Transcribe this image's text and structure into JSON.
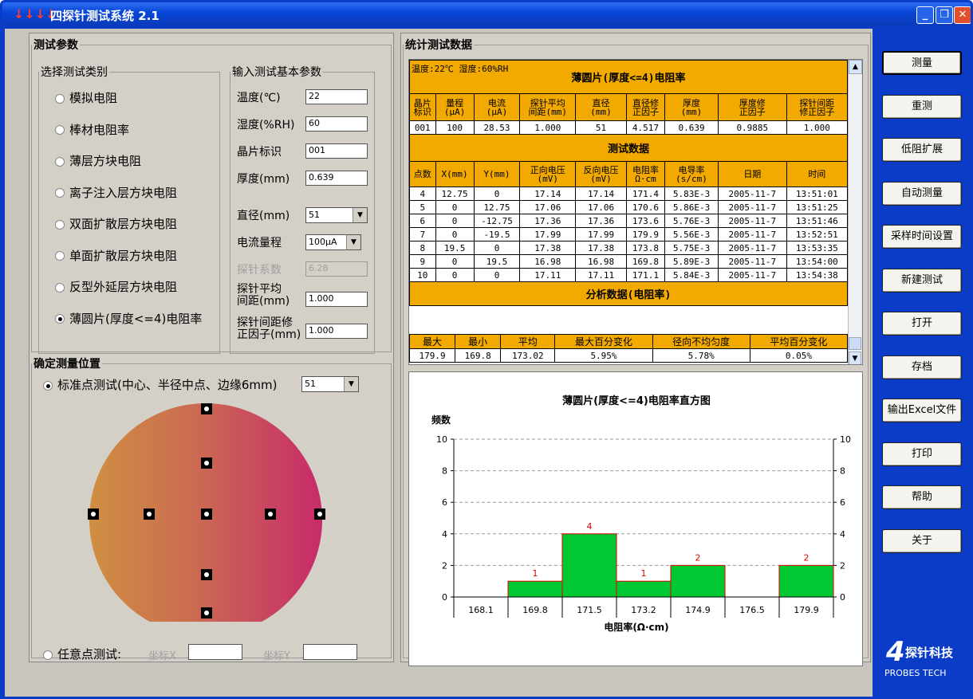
{
  "app": {
    "title": "四探针测试系统 2.1"
  },
  "window": {
    "min": "_",
    "restore": "❐",
    "close": "✕"
  },
  "params": {
    "title": "测试参数",
    "category_title": "选择测试类别",
    "categories": [
      "模拟电阻",
      "棒材电阻率",
      "薄层方块电阻",
      "离子注入层方块电阻",
      "双面扩散层方块电阻",
      "单面扩散层方块电阻",
      "反型外延层方块电阻",
      "薄圆片(厚度<=4)电阻率"
    ],
    "selected_category": 7,
    "input_title": "输入测试基本参数",
    "fields": [
      {
        "label": "温度(℃)",
        "value": "22"
      },
      {
        "label": "湿度(%RH)",
        "value": "60"
      },
      {
        "label": "晶片标识",
        "value": "001"
      },
      {
        "label": "厚度(mm)",
        "value": "0.639"
      }
    ],
    "diameter_label": "直径(mm)",
    "diameter_value": "51",
    "range_label": "电流量程",
    "range_value": "100μA",
    "probe_coef_label": "探针系数",
    "probe_coef_value": "6.28",
    "spacing_label_1": "探针平均",
    "spacing_label_2": "间距(mm)",
    "spacing_value": "1.000",
    "spacing_corr_label_1": "探针间距修",
    "spacing_corr_label_2": "正因子(mm)",
    "spacing_corr_value": "1.000"
  },
  "position": {
    "title": "确定测量位置",
    "standard_label": "标准点测试(中心、半径中点、边缘6mm)",
    "standard_value": "51",
    "arbitrary_label": "任意点测试:",
    "coord_x_label": "坐标X",
    "coord_y_label": "坐标Y"
  },
  "stats": {
    "title": "统计测试数据",
    "env": "温度:22℃ 湿度:60%RH",
    "table_title": "薄圆片(厚度<=4)电阻率",
    "info_headers": [
      [
        "晶片",
        "标识"
      ],
      [
        "量程",
        "(μA)"
      ],
      [
        "电流",
        "(μA)"
      ],
      [
        "探针平均",
        "间距(mm)"
      ],
      [
        "直径",
        "(mm)"
      ],
      [
        "直径修",
        "正因子"
      ],
      [
        "厚度",
        "(mm)"
      ],
      [
        "厚度修",
        "正因子"
      ],
      [
        "探针间距",
        "修正因子"
      ]
    ],
    "info_values": [
      "001",
      "100",
      "28.53",
      "1.000",
      "51",
      "4.517",
      "0.639",
      "0.9885",
      "1.000"
    ],
    "test_title": "测试数据",
    "test_headers": [
      [
        "点数"
      ],
      [
        "X(mm)"
      ],
      [
        "Y(mm)"
      ],
      [
        "正向电压",
        "(mV)"
      ],
      [
        "反向电压",
        "(mV)"
      ],
      [
        "电阻率",
        "Ω·cm"
      ],
      [
        "电导率",
        "(s/cm)"
      ],
      [
        "日期"
      ],
      [
        "时间"
      ]
    ],
    "test_rows": [
      [
        "4",
        "12.75",
        "0",
        "17.14",
        "17.14",
        "171.4",
        "5.83E-3",
        "2005-11-7",
        "13:51:01"
      ],
      [
        "5",
        "0",
        "12.75",
        "17.06",
        "17.06",
        "170.6",
        "5.86E-3",
        "2005-11-7",
        "13:51:25"
      ],
      [
        "6",
        "0",
        "-12.75",
        "17.36",
        "17.36",
        "173.6",
        "5.76E-3",
        "2005-11-7",
        "13:51:46"
      ],
      [
        "7",
        "0",
        "-19.5",
        "17.99",
        "17.99",
        "179.9",
        "5.56E-3",
        "2005-11-7",
        "13:52:51"
      ],
      [
        "8",
        "19.5",
        "0",
        "17.38",
        "17.38",
        "173.8",
        "5.75E-3",
        "2005-11-7",
        "13:53:35"
      ],
      [
        "9",
        "0",
        "19.5",
        "16.98",
        "16.98",
        "169.8",
        "5.89E-3",
        "2005-11-7",
        "13:54:00"
      ],
      [
        "10",
        "0",
        "0",
        "17.11",
        "17.11",
        "171.1",
        "5.84E-3",
        "2005-11-7",
        "13:54:38"
      ]
    ],
    "analysis_title": "分析数据(电阻率)",
    "analysis_headers": [
      "最大",
      "最小",
      "平均",
      "最大百分变化",
      "径向不均匀度",
      "平均百分变化"
    ],
    "analysis_values": [
      "179.9",
      "169.8",
      "173.02",
      "5.95%",
      "5.78%",
      "0.05%"
    ]
  },
  "chart_data": {
    "type": "bar",
    "title": "薄圆片(厚度<=4)电阻率直方图",
    "ylabel": "频数",
    "xlabel": "电阻率(Ω·cm)",
    "bins": [
      "168.1",
      "169.8",
      "171.5",
      "173.2",
      "174.9",
      "176.5",
      "179.9"
    ],
    "values": [
      0,
      1,
      4,
      1,
      2,
      0,
      2
    ],
    "ylim": [
      0,
      10
    ],
    "yticks": [
      "0",
      "2",
      "4",
      "6",
      "8",
      "10"
    ],
    "bar_color": "#00c832",
    "label_color": "#e00000"
  },
  "sidebar": {
    "buttons": [
      "测量",
      "重测",
      "低阻扩展",
      "自动测量",
      "采样时间设置",
      "新建测试",
      "打开",
      "存档",
      "输出Excel文件",
      "打印",
      "帮助",
      "关于"
    ]
  },
  "brand": {
    "mark": "4",
    "name": "探针科技",
    "sub": "PROBES TECH"
  }
}
